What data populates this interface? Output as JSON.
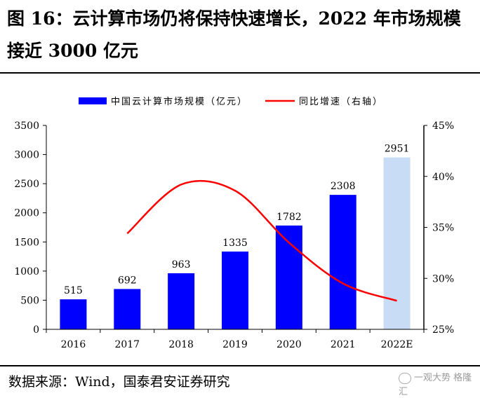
{
  "figure": {
    "title": "图 16：云计算市场仍将保持快速增长，2022 年市场规模接近 3000 亿元",
    "source": "数据来源：Wind，国泰君安证券研究",
    "watermark": "一观大势 格隆汇"
  },
  "chart_data": {
    "type": "bar",
    "categories": [
      "2016",
      "2017",
      "2018",
      "2019",
      "2020",
      "2021",
      "2022E"
    ],
    "series": [
      {
        "name": "中国云计算市场规模（亿元）",
        "type": "bar",
        "axis": "left",
        "values": [
          515,
          692,
          963,
          1335,
          1782,
          2308,
          2951
        ],
        "data_labels": [
          "515",
          "692",
          "963",
          "1335",
          "1782",
          "2308",
          "2951"
        ],
        "color": "#0000ff",
        "highlight_color": "#c9dcf5",
        "highlight_index": 6
      },
      {
        "name": "同比增速（右轴）",
        "type": "line",
        "axis": "right",
        "x": [
          "2017",
          "2018",
          "2019",
          "2020",
          "2021",
          "2022E"
        ],
        "values": [
          34.4,
          39.2,
          38.6,
          33.5,
          29.5,
          27.8
        ],
        "color": "#ff0000"
      }
    ],
    "left_axis": {
      "ylim": [
        0,
        3500
      ],
      "ticks": [
        0,
        500,
        1000,
        1500,
        2000,
        2500,
        3000,
        3500
      ],
      "tick_labels": [
        "0",
        "500",
        "1000",
        "1500",
        "2000",
        "2500",
        "3000",
        "3500"
      ]
    },
    "right_axis": {
      "ylim": [
        25,
        45
      ],
      "ticks": [
        25,
        30,
        35,
        40,
        45
      ],
      "tick_labels": [
        "25%",
        "30%",
        "35%",
        "40%",
        "45%"
      ]
    },
    "legend": {
      "position": "top"
    },
    "grid": false
  }
}
